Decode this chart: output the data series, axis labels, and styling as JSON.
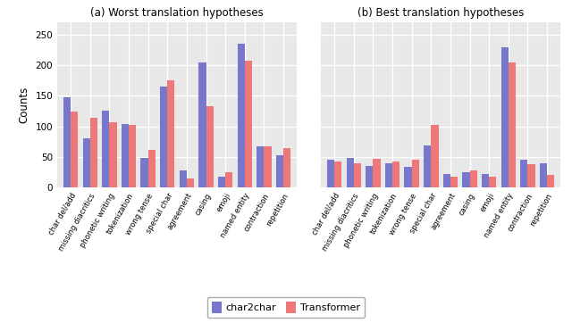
{
  "categories": [
    "char del/add",
    "missing diacritics",
    "phonetic writing",
    "tokenization",
    "wrong tense",
    "special char",
    "agreement",
    "casing",
    "emoji",
    "named entity",
    "contraction",
    "repetition"
  ],
  "worst_char2char": [
    148,
    80,
    126,
    104,
    48,
    165,
    27,
    205,
    18,
    235,
    67,
    53
  ],
  "worst_transformer": [
    124,
    114,
    106,
    102,
    61,
    176,
    15,
    133,
    25,
    207,
    67,
    65
  ],
  "best_char2char": [
    45,
    48,
    35,
    40,
    33,
    68,
    22,
    25,
    22,
    230,
    45,
    40
  ],
  "best_transformer": [
    42,
    40,
    47,
    42,
    45,
    103,
    18,
    28,
    17,
    205,
    38,
    20
  ],
  "color_blue": "#7777CC",
  "color_red": "#EE7777",
  "title_a": "(a) Worst translation hypotheses",
  "title_b": "(b) Best translation hypotheses",
  "ylabel": "Counts",
  "legend_labels": [
    "char2char",
    "Transformer"
  ],
  "ylim": [
    0,
    270
  ],
  "bg_color": "#E8E8E8",
  "grid_color": "white"
}
